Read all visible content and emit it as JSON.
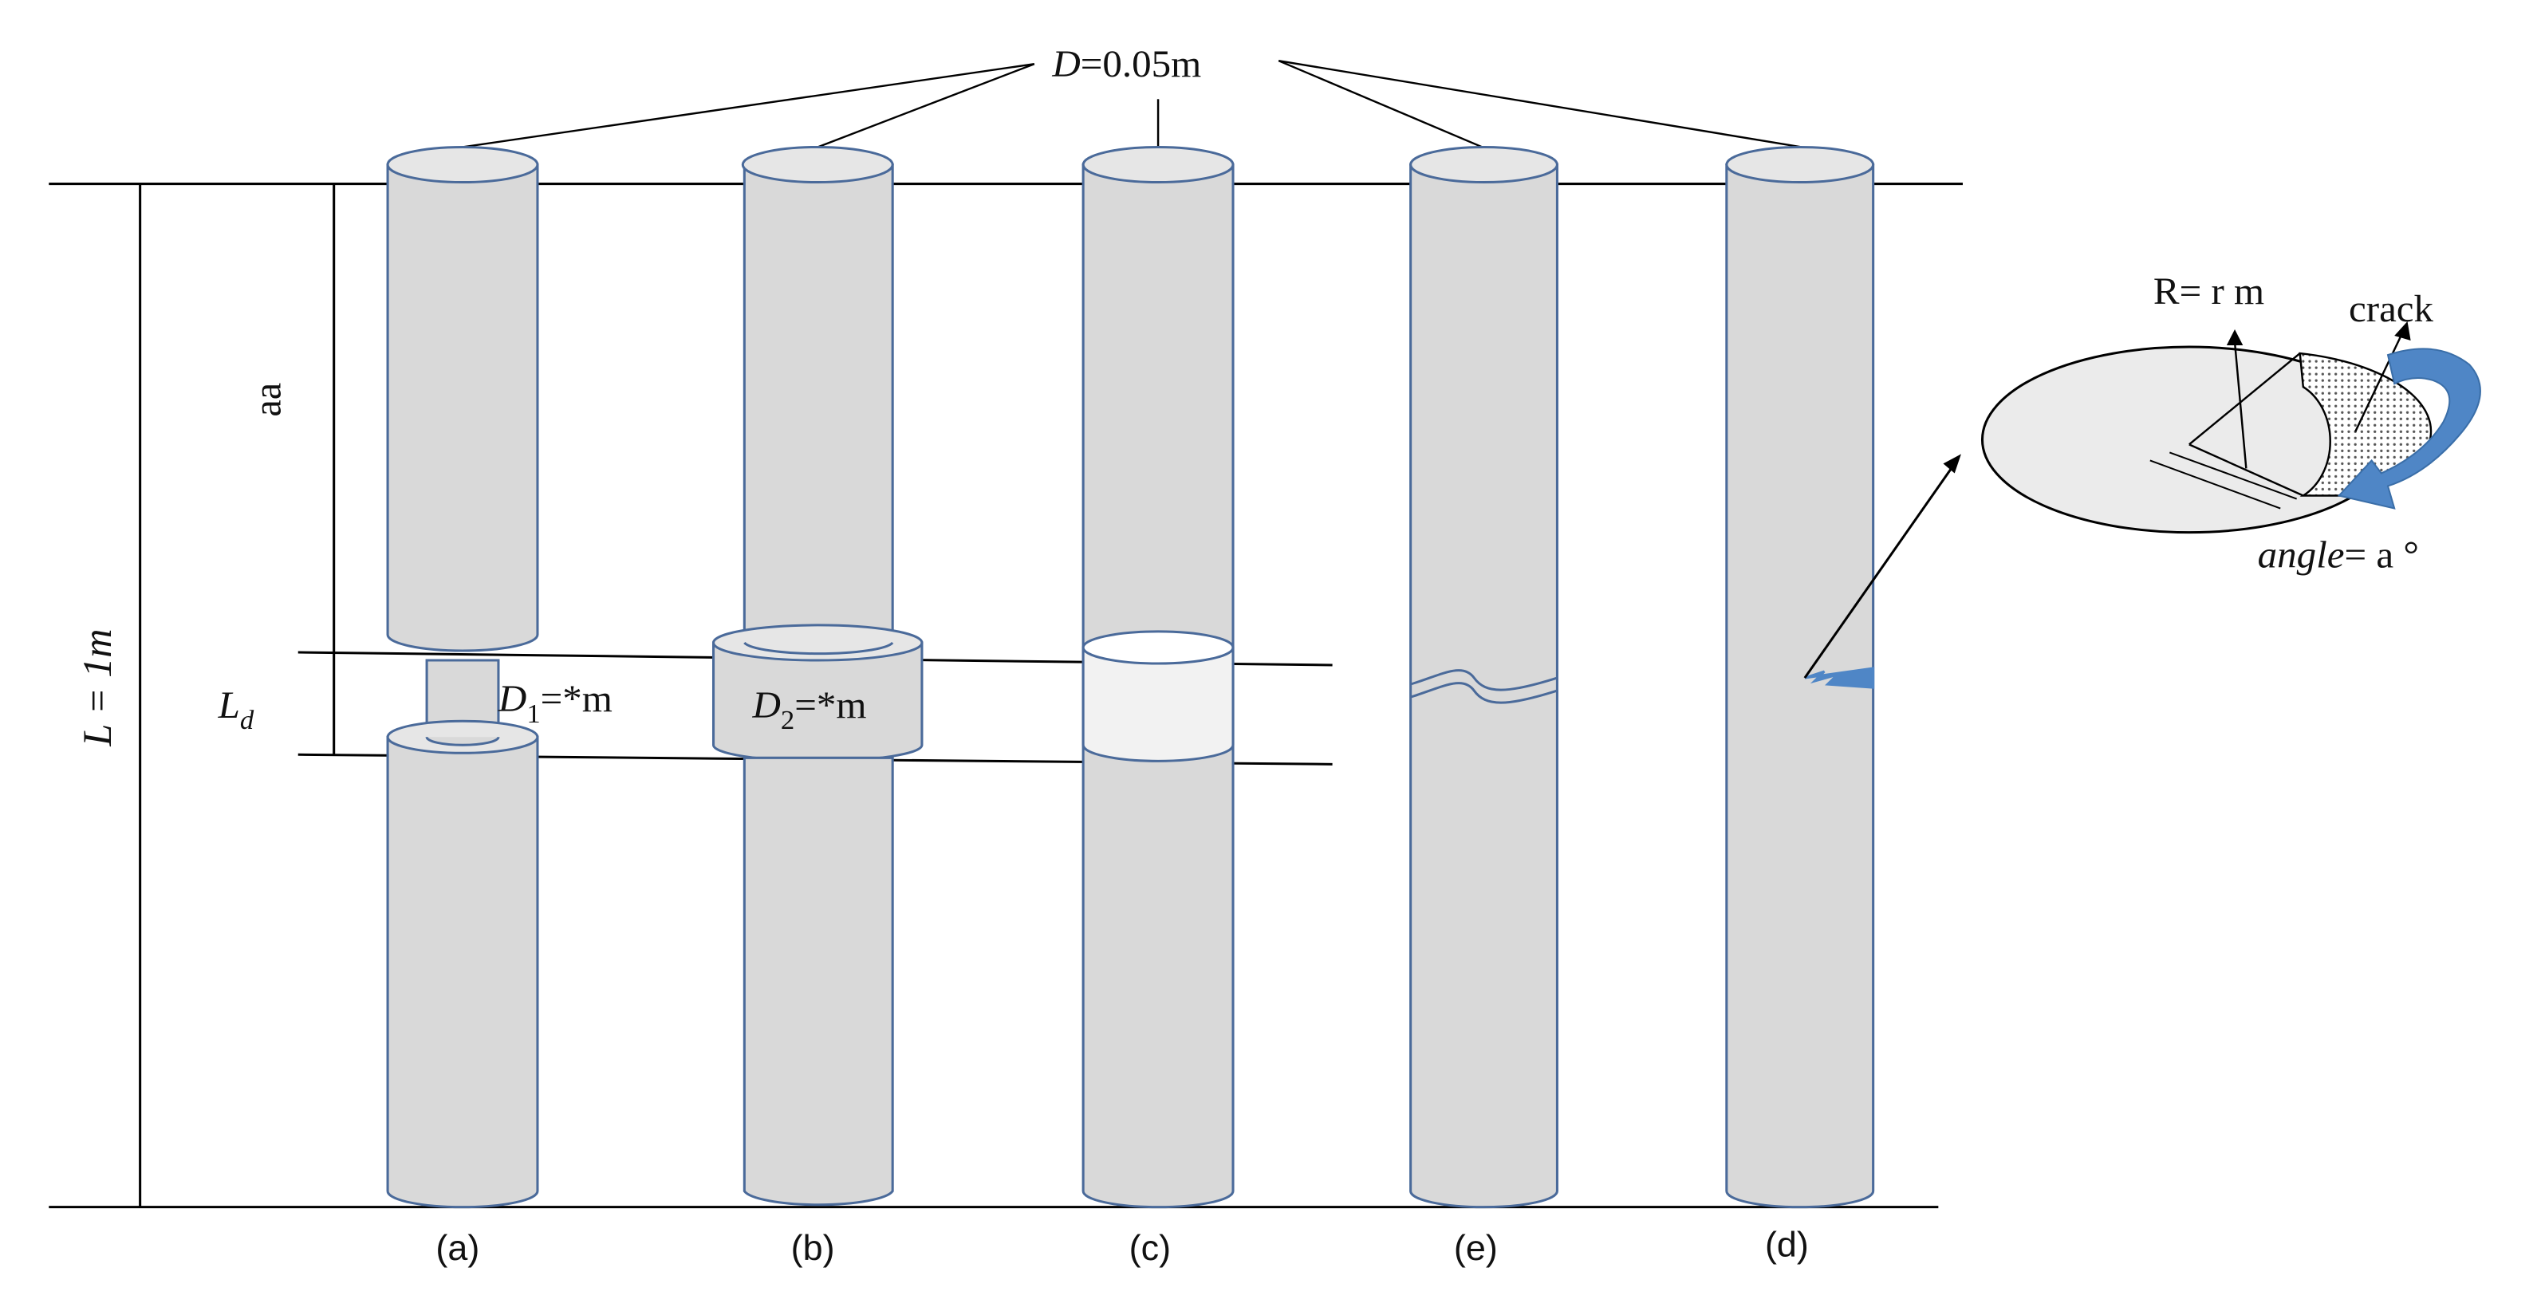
{
  "labels": {
    "diameter": {
      "symbol": "D",
      "value": "=0.05m"
    },
    "length": {
      "text": "L = 1m"
    },
    "segment": {
      "text": "aa"
    },
    "damage_length": {
      "symbol": "L",
      "sub": "d"
    },
    "d1": {
      "symbol": "D",
      "sub": "1",
      "value": "=*m"
    },
    "d2": {
      "symbol": "D",
      "sub": "2",
      "value": "=*m"
    },
    "radius": {
      "text": "R= r m"
    },
    "crack": {
      "text": "crack"
    },
    "angle": {
      "symbol": "angle",
      "value": "= a °"
    }
  },
  "specimens": [
    {
      "caption": "(a)"
    },
    {
      "caption": "(b)"
    },
    {
      "caption": "(c)"
    },
    {
      "caption": "(e)"
    },
    {
      "caption": "(d)"
    }
  ],
  "colors": {
    "cylinder_fill": "#d9d9d9",
    "cylinder_stroke": "#4a6a9a",
    "void_fill": "#f2f2f2",
    "arrow_blue": "#4f86c6",
    "line": "#000000"
  }
}
